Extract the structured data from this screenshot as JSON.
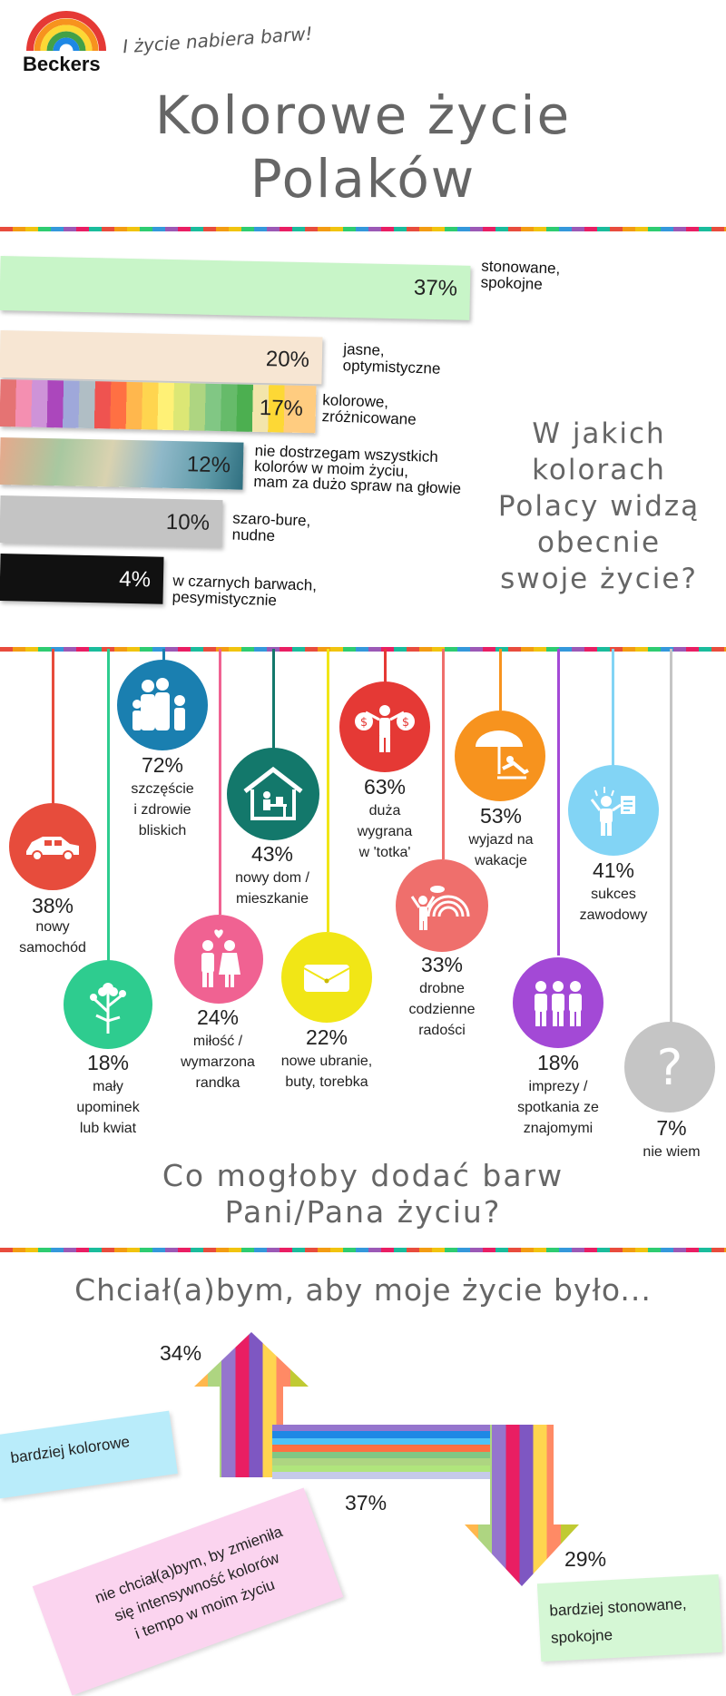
{
  "header": {
    "brand": "Beckers",
    "tagline": "I życie nabiera barw!",
    "title_line1": "Kolorowe życie",
    "title_line2": "Polaków"
  },
  "section1": {
    "question": [
      "W jakich",
      "kolorach",
      "Polacy widzą",
      "obecnie",
      "swoje życie?"
    ],
    "bars": [
      {
        "pct": "37%",
        "label": [
          "stonowane,",
          "spokojne"
        ],
        "fraction": 0.37,
        "color": "#c8f5c8"
      },
      {
        "pct": "20%",
        "label": [
          "jasne,",
          "optymistyczne"
        ],
        "fraction": 0.2,
        "color": "#f7e6d3"
      },
      {
        "pct": "17%",
        "label": [
          "kolorowe,",
          "zróżnicowane"
        ],
        "fraction": 0.17,
        "color": "multicolor"
      },
      {
        "pct": "12%",
        "label": [
          "nie dostrzegam wszystkich",
          "kolorów w moim życiu,",
          "mam za dużo spraw na głowie"
        ],
        "fraction": 0.12,
        "color": "blur"
      },
      {
        "pct": "10%",
        "label": [
          "szaro-bure,",
          "nudne"
        ],
        "fraction": 0.1,
        "color": "#c4c4c4"
      },
      {
        "pct": "4%",
        "label": [
          "w czarnych barwach,",
          "pesymistycznie"
        ],
        "fraction": 0.04,
        "color": "#111111"
      }
    ]
  },
  "section2": {
    "question_line1": "Co mogłoby dodać barw",
    "question_line2": "Pani/Pana życiu?",
    "items": [
      {
        "pct": "38%",
        "caption": [
          "nowy",
          "samochód"
        ],
        "icon": "car-icon",
        "color": "#e74c3c"
      },
      {
        "pct": "18%",
        "caption": [
          "mały",
          "upominek",
          "lub kwiat"
        ],
        "icon": "flower-icon",
        "color": "#2ecc8f"
      },
      {
        "pct": "72%",
        "caption": [
          "szczęście",
          "i zdrowie",
          "bliskich"
        ],
        "icon": "family-icon",
        "color": "#1a7fb0"
      },
      {
        "pct": "24%",
        "caption": [
          "miłość /",
          "wymarzona",
          "randka"
        ],
        "icon": "couple-icon",
        "color": "#f06292"
      },
      {
        "pct": "43%",
        "caption": [
          "nowy dom /",
          "mieszkanie"
        ],
        "icon": "house-icon",
        "color": "#13786b"
      },
      {
        "pct": "22%",
        "caption": [
          "nowe ubranie,",
          "buty, torebka"
        ],
        "icon": "handbag-icon",
        "color": "#f1e616"
      },
      {
        "pct": "63%",
        "caption": [
          "duża",
          "wygrana",
          "w 'totka'"
        ],
        "icon": "money-icon",
        "color": "#e53935"
      },
      {
        "pct": "33%",
        "caption": [
          "drobne",
          "codzienne",
          "radości"
        ],
        "icon": "rainbow-icon",
        "color": "#ef6f6c"
      },
      {
        "pct": "53%",
        "caption": [
          "wyjazd na",
          "wakacje"
        ],
        "icon": "beach-icon",
        "color": "#f7931e"
      },
      {
        "pct": "18%",
        "caption": [
          "imprezy /",
          "spotkania ze",
          "znajomymi"
        ],
        "icon": "party-icon",
        "color": "#a349d6"
      },
      {
        "pct": "41%",
        "caption": [
          "sukces",
          "zawodowy"
        ],
        "icon": "success-icon",
        "color": "#82d4f5"
      },
      {
        "pct": "7%",
        "caption": [
          "nie wiem"
        ],
        "icon": "question-icon",
        "color": "#c5c5c5"
      }
    ]
  },
  "section3": {
    "title": "Chciał(a)bym, aby moje życie było...",
    "up": {
      "pct": "34%",
      "label": "bardziej kolorowe"
    },
    "middle": {
      "pct": "37%",
      "label": [
        "nie chciał(a)bym, by zmieniła",
        "się intensywność kolorów",
        "i tempo w moim życiu"
      ]
    },
    "down": {
      "pct": "29%",
      "label": [
        "bardziej stonowane,",
        "spokojne"
      ]
    },
    "question_mark": "?"
  }
}
